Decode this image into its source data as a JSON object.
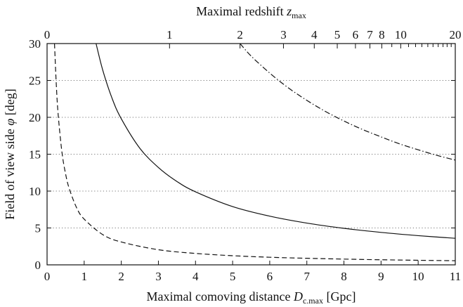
{
  "chart_data": {
    "type": "line",
    "xlabel": {
      "prefix": "Maximal comoving distance ",
      "var": "D",
      "sub": "c.max",
      "suffix": " [Gpc]"
    },
    "ylabel": {
      "prefix": "Field of view side ",
      "var": "φ",
      "suffix": " [deg]"
    },
    "top_xlabel": {
      "prefix": "Maximal redshift ",
      "var": "z",
      "sub": "max"
    },
    "xlim": [
      0,
      11
    ],
    "ylim": [
      0,
      30
    ],
    "x_ticks": [
      "0",
      "1",
      "2",
      "3",
      "4",
      "5",
      "6",
      "7",
      "8",
      "9",
      "10",
      "11"
    ],
    "y_ticks": [
      "0",
      "5",
      "10",
      "15",
      "20",
      "25",
      "30"
    ],
    "top_ticks": [
      {
        "z": 0,
        "d": 0.0,
        "label": "0"
      },
      {
        "z": 1,
        "d": 3.3,
        "label": "1"
      },
      {
        "z": 2,
        "d": 5.2,
        "label": "2"
      },
      {
        "z": 3,
        "d": 6.37,
        "label": "3"
      },
      {
        "z": 4,
        "d": 7.2,
        "label": "4"
      },
      {
        "z": 5,
        "d": 7.82,
        "label": "5"
      },
      {
        "z": 6,
        "d": 8.31,
        "label": "6"
      },
      {
        "z": 7,
        "d": 8.7,
        "label": "7"
      },
      {
        "z": 8,
        "d": 9.02,
        "label": "8"
      },
      {
        "z": 9,
        "d": 9.29,
        "label": ""
      },
      {
        "z": 10,
        "d": 9.53,
        "label": "10"
      },
      {
        "z": 11,
        "d": 9.74,
        "label": ""
      },
      {
        "z": 12,
        "d": 9.93,
        "label": ""
      },
      {
        "z": 13,
        "d": 10.1,
        "label": ""
      },
      {
        "z": 14,
        "d": 10.26,
        "label": ""
      },
      {
        "z": 15,
        "d": 10.4,
        "label": ""
      },
      {
        "z": 16,
        "d": 10.54,
        "label": ""
      },
      {
        "z": 17,
        "d": 10.67,
        "label": ""
      },
      {
        "z": 18,
        "d": 10.78,
        "label": ""
      },
      {
        "z": 19,
        "d": 10.89,
        "label": ""
      },
      {
        "z": 20,
        "d": 11.0,
        "label": "20"
      }
    ],
    "grid": "horizontal dotted",
    "series": [
      {
        "style": "dashed",
        "x": [
          0.2,
          0.25,
          0.3,
          0.4,
          0.5,
          0.6,
          0.8,
          1.0,
          1.5,
          2.0,
          3.0,
          4.0,
          5.0,
          6.0,
          7.0,
          8.0,
          9.0,
          10.0,
          11.0
        ],
        "y": [
          30,
          24.3,
          20.3,
          15.3,
          12.3,
          10.3,
          7.7,
          6.2,
          4.1,
          3.1,
          2.05,
          1.55,
          1.24,
          1.03,
          0.89,
          0.78,
          0.69,
          0.62,
          0.56
        ]
      },
      {
        "style": "solid",
        "x": [
          1.32,
          1.5,
          1.75,
          2.0,
          2.5,
          3.0,
          3.5,
          4.0,
          5.0,
          6.0,
          7.0,
          8.0,
          9.0,
          10.0,
          11.0
        ],
        "y": [
          30,
          26.4,
          22.6,
          19.8,
          15.8,
          13.2,
          11.3,
          9.9,
          7.9,
          6.6,
          5.66,
          4.95,
          4.4,
          3.96,
          3.6
        ]
      },
      {
        "style": "dash-dot",
        "x": [
          5.2,
          5.5,
          6.0,
          6.5,
          7.0,
          7.5,
          8.0,
          8.5,
          9.0,
          9.5,
          10.0,
          10.5,
          11.0
        ],
        "y": [
          30,
          28.3,
          26.0,
          24.0,
          22.3,
          20.8,
          19.5,
          18.35,
          17.35,
          16.4,
          15.6,
          14.85,
          14.2
        ]
      }
    ]
  }
}
